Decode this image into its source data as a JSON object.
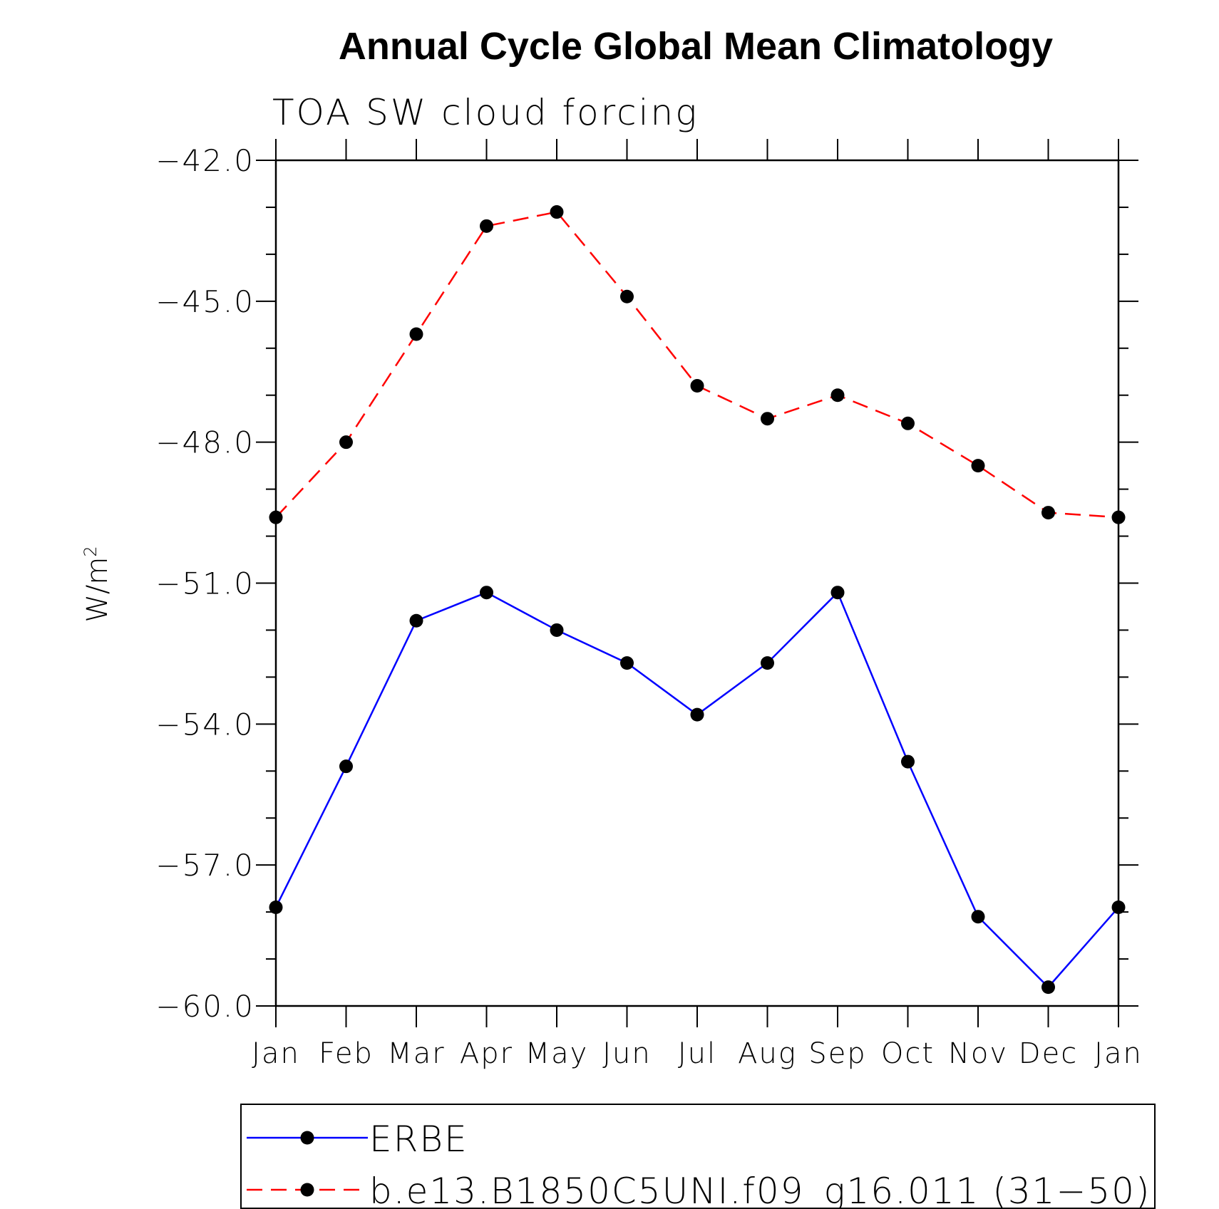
{
  "chart_data": {
    "type": "line",
    "title": "Annual Cycle Global Mean Climatology",
    "subtitle": "TOA SW cloud forcing",
    "ylabel_base": "W/m",
    "ylabel_sup": "2",
    "ylim": [
      -60.0,
      -42.0
    ],
    "yticks": [
      "−42.0",
      "−45.0",
      "−48.0",
      "−51.0",
      "−54.0",
      "−57.0",
      "−60.0"
    ],
    "ytick_values": [
      -42.0,
      -45.0,
      -48.0,
      -51.0,
      -54.0,
      -57.0,
      -60.0
    ],
    "categories": [
      "Jan",
      "Feb",
      "Mar",
      "Apr",
      "May",
      "Jun",
      "Jul",
      "Aug",
      "Sep",
      "Oct",
      "Nov",
      "Dec",
      "Jan"
    ],
    "grid": false,
    "legend_position": "bottom",
    "series": [
      {
        "name": "ERBE",
        "color": "#0000ff",
        "line_style": "solid",
        "marker": "filled-circle",
        "values": [
          -57.9,
          -54.9,
          -51.8,
          -51.2,
          -52.0,
          -52.7,
          -53.8,
          -52.7,
          -51.2,
          -54.8,
          -58.1,
          -59.6,
          -57.9
        ]
      },
      {
        "name": "b.e13.B1850C5UNI.f09_g16.011 (31−50)",
        "color": "#ff0000",
        "line_style": "dashed",
        "marker": "filled-circle",
        "values": [
          -49.6,
          -48.0,
          -45.7,
          -43.4,
          -43.1,
          -44.9,
          -46.8,
          -47.5,
          -47.0,
          -47.6,
          -48.5,
          -49.5,
          -49.6
        ]
      }
    ]
  }
}
